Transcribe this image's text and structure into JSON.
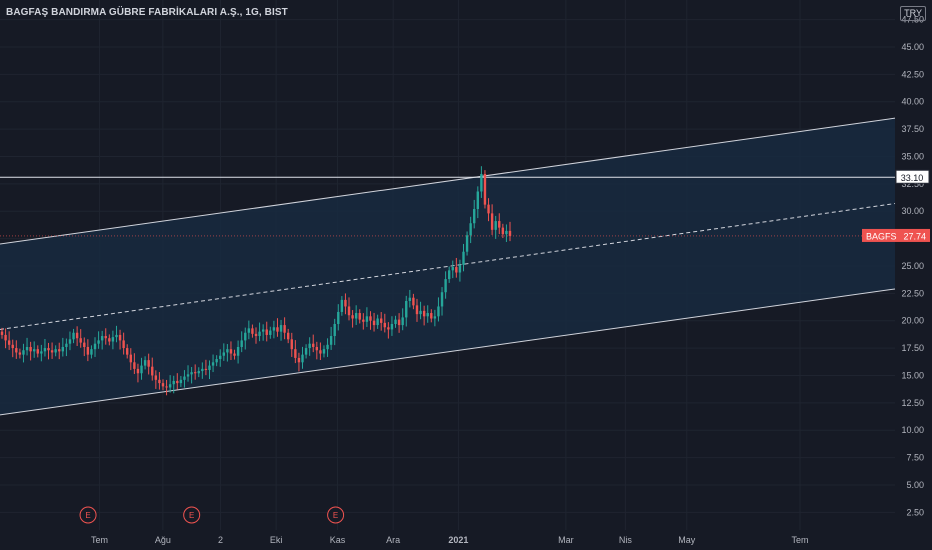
{
  "header": {
    "title": "BAGFAŞ BANDIRMA GÜBRE FABRİKALARI A.Ş., 1G, BIST",
    "currency": "TRY"
  },
  "chart_data": {
    "type": "candlestick",
    "ylim": [
      0,
      49
    ],
    "y_ticks": [
      "2.50",
      "5.00",
      "7.50",
      "10.00",
      "12.50",
      "15.00",
      "17.50",
      "20.00",
      "22.50",
      "25.00",
      "27.50",
      "30.00",
      "32.50",
      "35.00",
      "37.50",
      "40.00",
      "42.50",
      "45.00",
      "47.50"
    ],
    "y_tick_values": [
      2.5,
      5,
      7.5,
      10,
      12.5,
      15,
      17.5,
      20,
      22.5,
      25,
      27.5,
      30,
      32.5,
      35,
      37.5,
      40,
      42.5,
      45,
      47.5
    ],
    "x_labels": [
      {
        "label": "Tem",
        "date": "2020-07-01"
      },
      {
        "label": "Ağu",
        "date": "2020-08-03"
      },
      {
        "label": "2",
        "date": "2020-09-02"
      },
      {
        "label": "Eki",
        "date": "2020-10-01"
      },
      {
        "label": "Kas",
        "date": "2020-11-02"
      },
      {
        "label": "Ara",
        "date": "2020-12-01"
      },
      {
        "label": "2021",
        "date": "2021-01-04",
        "bold": true
      },
      {
        "label": "Mar",
        "date": "2021-03-01"
      },
      {
        "label": "Nis",
        "date": "2021-04-01"
      },
      {
        "label": "May",
        "date": "2021-05-03"
      },
      {
        "label": "Tem",
        "date": "2021-07-01"
      }
    ],
    "series_close": [
      18.7,
      18.2,
      17.8,
      17.5,
      17.1,
      16.9,
      17.3,
      17.6,
      17.2,
      17.4,
      17.0,
      17.2,
      17.5,
      17.3,
      17.1,
      17.4,
      17.2,
      17.6,
      17.9,
      18.3,
      18.9,
      18.4,
      18.0,
      17.6,
      16.9,
      17.4,
      17.9,
      18.2,
      18.6,
      18.4,
      18.1,
      18.5,
      18.7,
      18.2,
      17.5,
      16.9,
      16.2,
      15.6,
      15.2,
      15.9,
      16.4,
      15.8,
      15.0,
      14.6,
      14.3,
      14.0,
      13.9,
      14.2,
      14.5,
      14.3,
      14.6,
      14.9,
      15.1,
      15.3,
      15.2,
      15.4,
      15.6,
      15.5,
      15.9,
      16.2,
      16.5,
      16.8,
      17.1,
      17.4,
      17.0,
      16.8,
      17.6,
      18.2,
      18.9,
      19.3,
      18.8,
      18.6,
      19.0,
      19.2,
      18.7,
      19.1,
      19.4,
      19.0,
      19.6,
      18.9,
      18.3,
      17.4,
      16.6,
      16.2,
      16.9,
      17.5,
      17.9,
      17.6,
      17.3,
      17.0,
      17.4,
      17.8,
      18.6,
      19.7,
      20.8,
      21.9,
      21.3,
      20.5,
      20.2,
      20.7,
      20.1,
      19.9,
      20.4,
      20.0,
      19.6,
      20.2,
      19.8,
      19.4,
      19.2,
      19.7,
      20.1,
      19.6,
      20.3,
      21.8,
      22.1,
      21.4,
      20.6,
      20.9,
      20.4,
      20.7,
      20.2,
      20.4,
      21.3,
      22.6,
      23.8,
      24.6,
      24.9,
      24.4,
      25.1,
      26.3,
      27.8,
      28.9,
      30.2,
      31.8,
      33.4,
      30.6,
      29.8,
      28.3,
      29.1,
      28.5,
      27.9,
      28.2,
      27.74
    ],
    "last_price": "27.74",
    "symbol": "BAGFS",
    "marked_level": "33.10",
    "channel": {
      "upper": [
        [
          0,
          27.0
        ],
        [
          1,
          38.5
        ]
      ],
      "middle": [
        [
          0,
          19.2
        ],
        [
          1,
          30.7
        ]
      ],
      "lower": [
        [
          0,
          11.4
        ],
        [
          1,
          22.9
        ]
      ]
    },
    "earnings_markers": [
      {
        "label": "E",
        "date": "2020-06-25"
      },
      {
        "label": "E",
        "date": "2020-08-18"
      },
      {
        "label": "E",
        "date": "2020-11-01"
      }
    ],
    "colors": {
      "up": "#26a69a",
      "down": "#ef5350",
      "channel_fill": "#182a40",
      "background": "#161a25"
    }
  }
}
